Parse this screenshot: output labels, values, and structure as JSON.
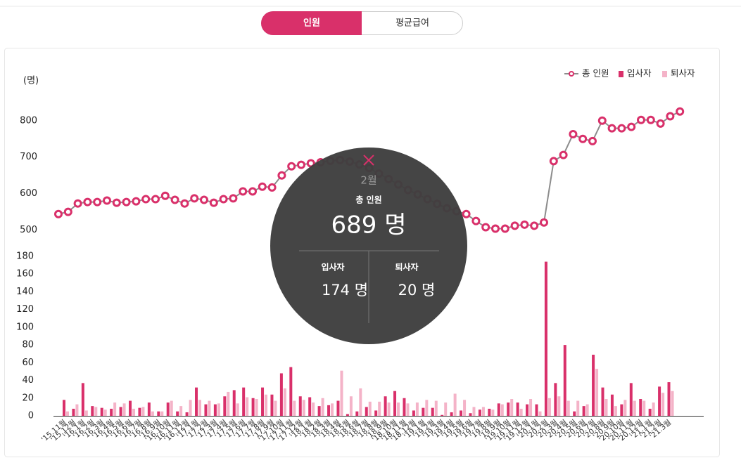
{
  "tabs": [
    "인원",
    "평균급여"
  ],
  "chart_data": {
    "type": "combo",
    "y_label": "(명)",
    "categories": [
      "'15.11월",
      "'15.12월",
      "'16.1월",
      "'16.2월",
      "'16.3월",
      "'16.4월",
      "'16.5월",
      "'16.6월",
      "'16.7월",
      "'16.8월",
      "'16.9월",
      "'16.10월",
      "'16.11월",
      "'16.12월",
      "'17.1월",
      "'17.2월",
      "'17.3월",
      "'17.4월",
      "'17.5월",
      "'17.6월",
      "'17.7월",
      "'17.8월",
      "'17.9월",
      "'17.10월",
      "'17.11월",
      "'17.12월",
      "'18.1월",
      "'18.2월",
      "'18.3월",
      "'18.4월",
      "'18.5월",
      "'18.6월",
      "'18.7월",
      "'18.8월",
      "'18.9월",
      "'18.10월",
      "'18.11월",
      "'18.12월",
      "'19.1월",
      "'19.2월",
      "'19.3월",
      "'19.4월",
      "'19.5월",
      "'19.6월",
      "'19.7월",
      "'19.8월",
      "'19.9월",
      "'19.10월",
      "'19.11월",
      "'19.12월",
      "'20.1월",
      "'20.2월",
      "'20.3월",
      "'20.4월",
      "'20.5월",
      "'20.6월",
      "'20.7월",
      "'20.8월",
      "'20.9월",
      "'20.10월",
      "'20.11월",
      "'20.12월",
      "'21.1월",
      "'21.2월",
      "'21.3월"
    ],
    "series": [
      {
        "name": "총 인원",
        "kind": "line",
        "axis": "y",
        "color": "#d9306a",
        "line_color": "#8c8c8c",
        "values": [
          544,
          550,
          573,
          577,
          577,
          581,
          575,
          577,
          579,
          585,
          585,
          594,
          583,
          573,
          587,
          583,
          575,
          585,
          587,
          606,
          606,
          619,
          617,
          650,
          675,
          679,
          683,
          686,
          690,
          692,
          688,
          680,
          670,
          655,
          640,
          625,
          610,
          598,
          585,
          572,
          560,
          552,
          544,
          525,
          508,
          504,
          504,
          512,
          515,
          512,
          521,
          689,
          706,
          763,
          750,
          744,
          800,
          779,
          779,
          783,
          802,
          802,
          792,
          812,
          825
        ]
      },
      {
        "name": "입사자",
        "kind": "bar",
        "axis": "y2",
        "color": "#d9306a",
        "values": [
          18,
          8,
          37,
          11,
          9,
          8,
          10,
          17,
          9,
          15,
          5,
          15,
          5,
          4,
          32,
          13,
          13,
          22,
          29,
          32,
          20,
          32,
          24,
          48,
          55,
          22,
          21,
          11,
          12,
          17,
          2,
          5,
          10,
          6,
          22,
          28,
          20,
          6,
          9,
          9,
          1,
          4,
          6,
          3,
          7,
          8,
          14,
          15,
          15,
          13,
          13,
          174,
          37,
          80,
          5,
          11,
          69,
          32,
          24,
          13,
          37,
          19,
          8,
          33,
          38
        ]
      },
      {
        "name": "퇴사자",
        "kind": "bar",
        "axis": "y2",
        "color": "#f4b3c8",
        "values": [
          5,
          13,
          6,
          10,
          7,
          15,
          14,
          8,
          10,
          5,
          5,
          17,
          11,
          18,
          18,
          17,
          14,
          27,
          14,
          21,
          19,
          24,
          17,
          31,
          17,
          18,
          15,
          20,
          14,
          51,
          22,
          31,
          16,
          16,
          15,
          15,
          14,
          15,
          18,
          17,
          15,
          25,
          18,
          10,
          10,
          7,
          13,
          19,
          8,
          19,
          5,
          20,
          22,
          17,
          17,
          13,
          53,
          19,
          11,
          18,
          17,
          17,
          15,
          26,
          28
        ]
      }
    ],
    "ylim": [
      480,
      840
    ],
    "yticks": [
      500,
      600,
      700,
      800
    ],
    "y2lim": [
      0,
      180
    ],
    "y2ticks": [
      0,
      20,
      40,
      60,
      80,
      100,
      120,
      140,
      160,
      180
    ],
    "legend": "top-right"
  },
  "tooltip": {
    "month": "2월",
    "total_label": "총 인원",
    "total": "689 명",
    "hire_label": "입사자",
    "hire": "174 명",
    "leave_label": "퇴사자",
    "leave": "20 명"
  }
}
